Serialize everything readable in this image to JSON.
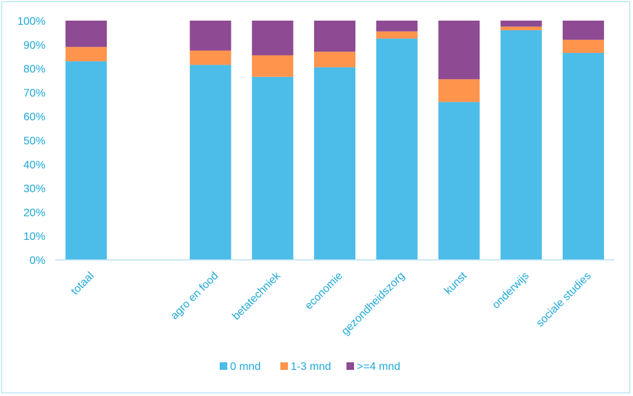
{
  "chart_data": {
    "type": "bar",
    "stacked": true,
    "categories": [
      "totaal",
      "",
      "agro en food",
      "betatechniek",
      "economie",
      "gezondheidszorg",
      "kunst",
      "onderwijs",
      "sociale studies"
    ],
    "series": [
      {
        "name": "0 mnd",
        "color": "#4bbde8",
        "values": [
          83,
          null,
          81.5,
          76.5,
          80.5,
          92.5,
          66,
          96,
          86.5
        ]
      },
      {
        "name": "1-3 mnd",
        "color": "#ff944d",
        "values": [
          6,
          null,
          6,
          9,
          6.5,
          3,
          9.5,
          1.5,
          5.5
        ]
      },
      {
        "name": ">=4 mnd",
        "color": "#8e4a93",
        "values": [
          11,
          null,
          12.5,
          14.5,
          13,
          4.5,
          24.5,
          2.5,
          8
        ]
      }
    ],
    "y_ticks": [
      "0%",
      "10%",
      "20%",
      "30%",
      "40%",
      "50%",
      "60%",
      "70%",
      "80%",
      "90%",
      "100%"
    ],
    "ylim": [
      0,
      100
    ],
    "grid": false,
    "legend_position": "bottom"
  }
}
